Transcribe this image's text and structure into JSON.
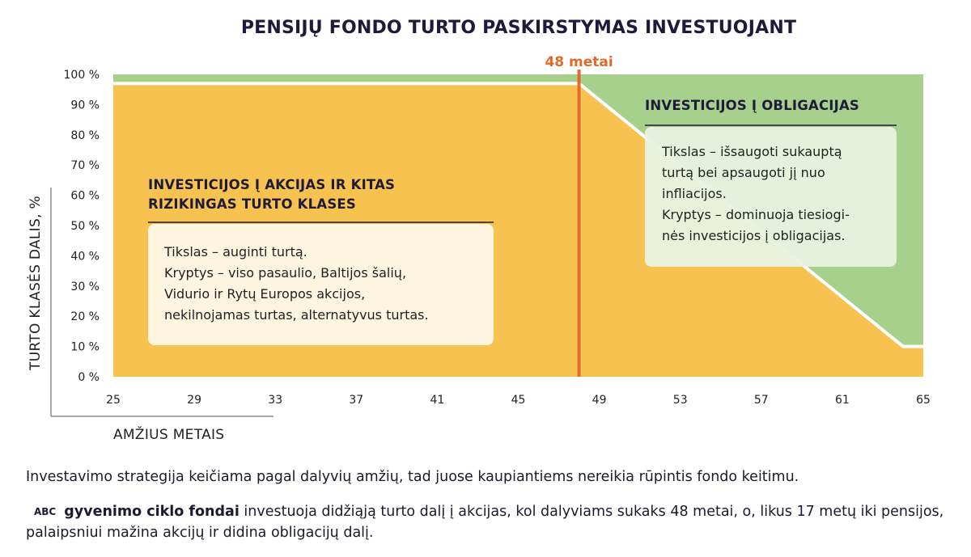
{
  "chart_data": {
    "type": "area",
    "title": "PENSIJŲ FONDO TURTO PASKIRSTYMAS INVESTUOJANT",
    "xlabel": "AMŽIUS METAIS",
    "ylabel": "TURTO KLASĖS DALIS, %",
    "x_ticks": [
      "25",
      "29",
      "33",
      "37",
      "41",
      "45",
      "49",
      "53",
      "57",
      "61",
      "65"
    ],
    "y_ticks": [
      "0 %",
      "10 %",
      "20 %",
      "30 %",
      "40 %",
      "50 %",
      "60 %",
      "70 %",
      "80 %",
      "90 %",
      "100 %"
    ],
    "xlim": [
      25,
      65
    ],
    "ylim": [
      0,
      100
    ],
    "series": [
      {
        "name": "akcijos",
        "color": "#f7c250",
        "x": [
          25,
          48,
          64,
          65
        ],
        "values": [
          97,
          97,
          10,
          10
        ]
      },
      {
        "name": "obligacijos",
        "color": "#a8d08d",
        "x": [
          25,
          48,
          64,
          65
        ],
        "values": [
          3,
          3,
          90,
          90
        ]
      }
    ],
    "marker": {
      "x": 48,
      "label": "48 metai",
      "color": "#e06a2c"
    },
    "regions": [
      {
        "title_lines": [
          "INVESTICIJOS Į AKCIJAS IR KITAS",
          "RIZIKINGAS TURTO KLASES"
        ],
        "text_lines": [
          "Tikslas – auginti turtą.",
          "Kryptys – viso pasaulio, Baltijos šalių,",
          "Vidurio ir Rytų Europos akcijos,",
          "nekilnojamas turtas, alternatyvus turtas."
        ]
      },
      {
        "title_lines": [
          "INVESTICIJOS Į OBLIGACIJAS"
        ],
        "text_lines": [
          "Tikslas – išsaugoti sukauptą",
          "turtą bei apsaugoti jį nuo",
          "infliacijos.",
          "Kryptys – dominuoja tiesiogi-",
          "nės investicijos į obligacijas."
        ]
      }
    ]
  },
  "notes": {
    "line1": "Investavimo strategija keičiama pagal dalyvių amžių, tad juose kaupiantiems nereikia rūpintis fondo keitimu.",
    "logo_text": "ABC",
    "brand": "gyvenimo ciklo fondai",
    "rest": " investuoja didžiąją turto dalį į akcijas, kol dalyviams sukaks 48 metai, o, likus 17 metų iki pensijos, palaipsniui mažina akcijų ir didina obligacijų dalį."
  }
}
